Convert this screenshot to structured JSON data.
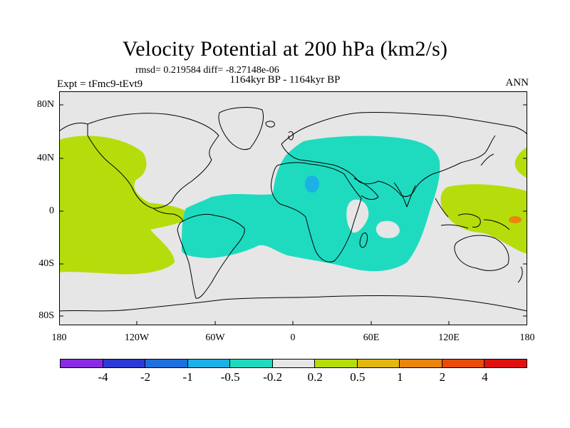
{
  "title": "Velocity Potential at 200 hPa (km2/s)",
  "stats": "rmsd= 0.219584 diff= -8.27148e-06",
  "experiment": "Expt = tFmc9-tEvt9",
  "period": "1164kyr BP - 1164kyr BP",
  "season": "ANN",
  "lat_labels": [
    "80N",
    "40N",
    "0",
    "40S",
    "80S"
  ],
  "lon_labels": [
    "180",
    "120W",
    "60W",
    "0",
    "60E",
    "120E",
    "180"
  ],
  "colorbar": {
    "colors": [
      "#8A2BE2",
      "#2E3AD6",
      "#1E6FE0",
      "#1BB0E6",
      "#1EDBC0",
      "#E6E6E6",
      "#B5DD0C",
      "#E2B80E",
      "#E8860E",
      "#E84C0A",
      "#E01010"
    ],
    "labels": [
      "-4",
      "-2",
      "-1",
      "-0.5",
      "-0.2",
      "0.2",
      "0.5",
      "1",
      "2",
      "4"
    ]
  },
  "map_colors": {
    "background": "#E6E6E6",
    "positive": "#B5DD0C",
    "negative": "#1EDBC0",
    "negative_core": "#1BB0E6",
    "positive_core": "#E8860E"
  }
}
